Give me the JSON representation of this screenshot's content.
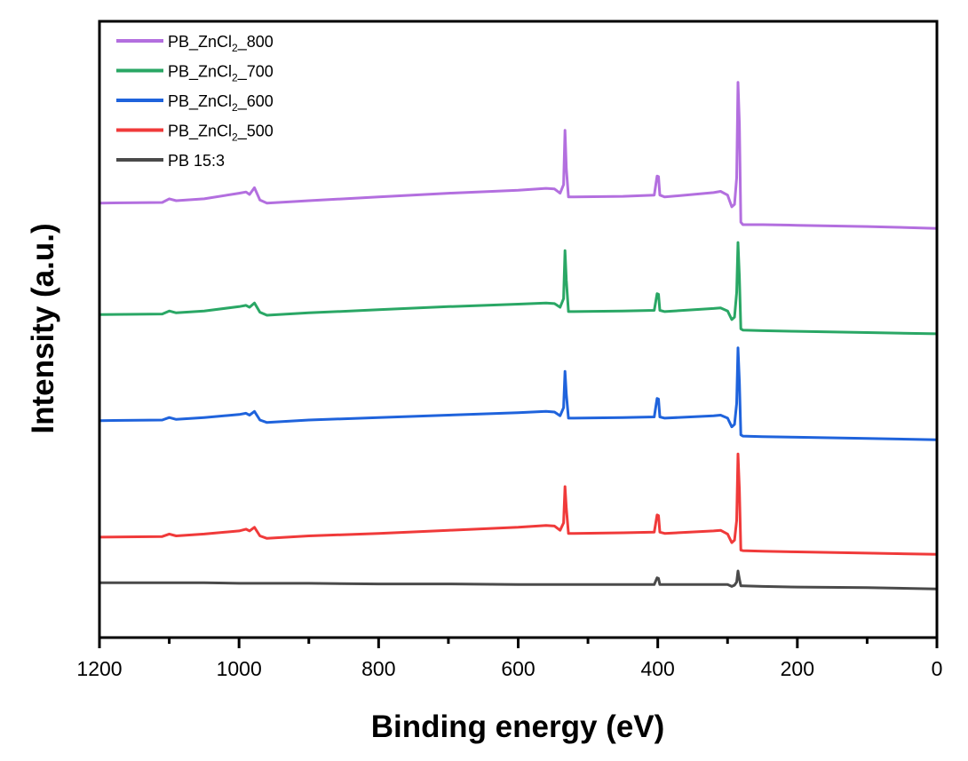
{
  "chart_data": {
    "type": "line",
    "title": "",
    "xlabel": "Binding energy (eV)",
    "ylabel": "Intensity (a.u.)",
    "xlim": [
      1200,
      0
    ],
    "ylim": [
      0,
      100
    ],
    "x_reversed": true,
    "x_ticks": [
      1200,
      1000,
      800,
      600,
      400,
      200,
      0
    ],
    "x_tick_labels": [
      "1200",
      "1000",
      "800",
      "600",
      "400",
      "200",
      "0"
    ],
    "x_minor_ticks": [
      1100,
      900,
      700,
      500,
      300,
      100
    ],
    "y_ticks_shown": false,
    "grid": false,
    "legend_position": "top-left",
    "x": [
      1200,
      1110,
      1100,
      1090,
      1050,
      1000,
      990,
      985,
      978,
      970,
      960,
      900,
      800,
      700,
      600,
      560,
      548,
      540,
      535,
      533,
      531,
      528,
      520,
      450,
      405,
      401,
      399,
      397,
      390,
      320,
      310,
      300,
      294,
      290,
      287,
      285,
      283,
      281,
      278,
      250,
      200,
      100,
      0
    ],
    "series": [
      {
        "name": "PB_ZnCl2_800",
        "legend_main": "PB_ZnCl",
        "legend_sub": "2",
        "legend_tail": "_800",
        "color": "#b36fdf",
        "values": [
          70.5,
          70.6,
          71.2,
          70.9,
          71.2,
          72.1,
          72.3,
          71.9,
          73.0,
          71.0,
          70.5,
          70.9,
          71.5,
          72.1,
          72.6,
          72.9,
          72.8,
          72.1,
          73.5,
          82.3,
          76.1,
          71.5,
          71.5,
          71.6,
          71.8,
          74.9,
          74.8,
          71.8,
          71.5,
          72.2,
          72.4,
          71.8,
          69.9,
          70.3,
          74.6,
          90.1,
          83.3,
          67.4,
          67.0,
          67.0,
          66.9,
          66.7,
          66.4
        ]
      },
      {
        "name": "PB_ZnCl2_700",
        "legend_main": "PB_ZnCl",
        "legend_sub": "2",
        "legend_tail": "_700",
        "color": "#2aa765",
        "values": [
          52.4,
          52.5,
          53.0,
          52.7,
          53.0,
          53.7,
          53.9,
          53.6,
          54.3,
          52.8,
          52.3,
          52.7,
          53.2,
          53.7,
          54.1,
          54.3,
          54.2,
          53.6,
          55.0,
          62.8,
          58.0,
          52.9,
          52.9,
          53.0,
          53.1,
          55.8,
          55.7,
          53.1,
          52.9,
          53.4,
          53.5,
          53.0,
          51.6,
          52.0,
          56.0,
          64.1,
          58.5,
          50.1,
          49.9,
          49.8,
          49.7,
          49.5,
          49.3
        ]
      },
      {
        "name": "PB_ZnCl2_600",
        "legend_main": "PB_ZnCl",
        "legend_sub": "2",
        "legend_tail": "_600",
        "color": "#1f63dc",
        "values": [
          35.2,
          35.3,
          35.7,
          35.4,
          35.7,
          36.2,
          36.4,
          36.1,
          36.7,
          35.3,
          34.9,
          35.3,
          35.7,
          36.1,
          36.5,
          36.7,
          36.6,
          36.0,
          37.3,
          43.2,
          39.5,
          35.6,
          35.6,
          35.7,
          35.8,
          38.8,
          38.7,
          35.8,
          35.6,
          36.0,
          36.1,
          35.6,
          34.2,
          34.6,
          38.0,
          47.0,
          41.5,
          32.9,
          32.7,
          32.6,
          32.5,
          32.3,
          32.1
        ]
      },
      {
        "name": "PB_ZnCl2_500",
        "legend_main": "PB_ZnCl",
        "legend_sub": "2",
        "legend_tail": "_500",
        "color": "#f03a3a",
        "values": [
          16.3,
          16.4,
          16.8,
          16.5,
          16.8,
          17.3,
          17.6,
          17.3,
          17.9,
          16.5,
          16.1,
          16.5,
          16.9,
          17.4,
          17.9,
          18.2,
          18.1,
          17.4,
          18.6,
          24.5,
          21.0,
          16.9,
          16.9,
          17.0,
          17.1,
          19.9,
          19.8,
          17.1,
          16.9,
          17.3,
          17.4,
          16.8,
          15.4,
          15.8,
          19.0,
          29.8,
          24.0,
          14.2,
          14.1,
          14.0,
          13.9,
          13.7,
          13.5
        ]
      },
      {
        "name": "PB 15:3",
        "legend_main": "PB 15:3",
        "legend_sub": "",
        "legend_tail": "",
        "color": "#4a4a4a",
        "values": [
          8.9,
          8.9,
          8.9,
          8.9,
          8.9,
          8.8,
          8.8,
          8.8,
          8.8,
          8.8,
          8.8,
          8.8,
          8.7,
          8.7,
          8.6,
          8.6,
          8.6,
          8.6,
          8.6,
          8.6,
          8.6,
          8.6,
          8.6,
          8.6,
          8.6,
          9.7,
          9.6,
          8.6,
          8.6,
          8.6,
          8.6,
          8.6,
          8.3,
          8.5,
          9.0,
          10.8,
          9.5,
          8.4,
          8.4,
          8.3,
          8.2,
          8.1,
          7.9
        ]
      }
    ]
  }
}
